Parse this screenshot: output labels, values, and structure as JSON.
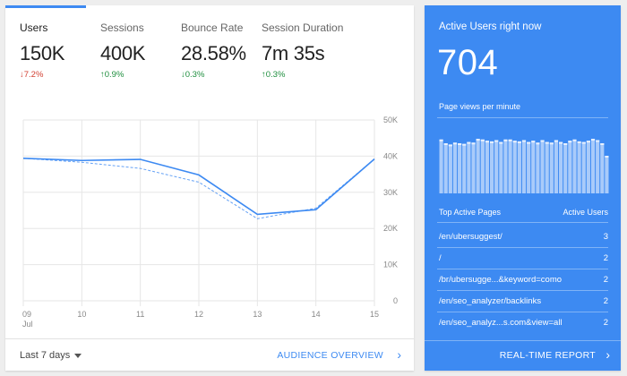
{
  "metrics": [
    {
      "name": "Users",
      "value": "150K",
      "change": "↓7.2%",
      "direction": "down"
    },
    {
      "name": "Sessions",
      "value": "400K",
      "change": "↑0.9%",
      "direction": "up"
    },
    {
      "name": "Bounce Rate",
      "value": "28.58%",
      "change": "↓0.3%",
      "direction": "up"
    },
    {
      "name": "Session Duration",
      "value": "7m 35s",
      "change": "↑0.3%",
      "direction": "up"
    }
  ],
  "chart_data": {
    "type": "line",
    "x_labels": [
      "09",
      "10",
      "11",
      "12",
      "13",
      "14",
      "15"
    ],
    "x_sublabel": "Jul",
    "y_ticks": [
      "50K",
      "40K",
      "30K",
      "20K",
      "10K",
      "0"
    ],
    "ylim": [
      0,
      50000
    ],
    "series": [
      {
        "style": "solid",
        "values": [
          39400,
          38800,
          39100,
          34800,
          23900,
          25200,
          39200
        ]
      },
      {
        "style": "dashed",
        "values": [
          39400,
          38300,
          36600,
          32800,
          22700,
          25600,
          39200
        ]
      }
    ]
  },
  "footer": {
    "date_range": "Last 7 days",
    "audience_link": "AUDIENCE OVERVIEW"
  },
  "realtime": {
    "title": "Active Users right now",
    "count": "704",
    "pageviews_label": "Page views per minute",
    "pageviews_bars": [
      0.86,
      0.8,
      0.78,
      0.81,
      0.8,
      0.79,
      0.82,
      0.81,
      0.87,
      0.86,
      0.84,
      0.83,
      0.85,
      0.82,
      0.86,
      0.86,
      0.84,
      0.83,
      0.85,
      0.82,
      0.84,
      0.81,
      0.85,
      0.82,
      0.81,
      0.85,
      0.82,
      0.8,
      0.84,
      0.86,
      0.83,
      0.82,
      0.84,
      0.87,
      0.85,
      0.8,
      0.6
    ],
    "pages_header": {
      "left": "Top Active Pages",
      "right": "Active Users"
    },
    "pages": [
      {
        "path": "/en/ubersuggest/",
        "users": "3"
      },
      {
        "path": "/",
        "users": "2"
      },
      {
        "path": "/br/ubersugge...&keyword=como",
        "users": "2"
      },
      {
        "path": "/en/seo_analyzer/backlinks",
        "users": "2"
      },
      {
        "path": "/en/seo_analyz...s.com&view=all",
        "users": "2"
      }
    ],
    "report_link": "REAL-TIME REPORT"
  },
  "colors": {
    "accent": "#3d8af2",
    "down": "#d23f31",
    "up": "#1e8e3e"
  }
}
